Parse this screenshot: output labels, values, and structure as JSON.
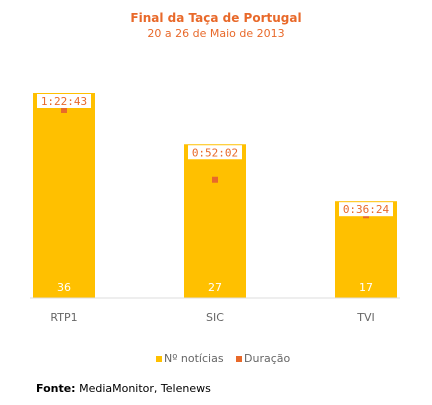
{
  "chart_data": {
    "type": "bar",
    "title": "Final da Taça de Portugal",
    "subtitle": "20 a 26 de Maio de 2013",
    "categories": [
      "RTP1",
      "SIC",
      "TVI"
    ],
    "series": [
      {
        "name": "Nº notícias",
        "values": [
          36,
          27,
          17
        ],
        "color": "#ffc000"
      },
      {
        "name": "Duração",
        "values": [
          "1:22:43",
          "0:52:02",
          "0:36:24"
        ],
        "color": "#e8692a"
      }
    ],
    "legend_position": "bottom",
    "grid": false
  },
  "source": {
    "label": "Fonte:",
    "text": "MediaMonitor, Telenews"
  }
}
